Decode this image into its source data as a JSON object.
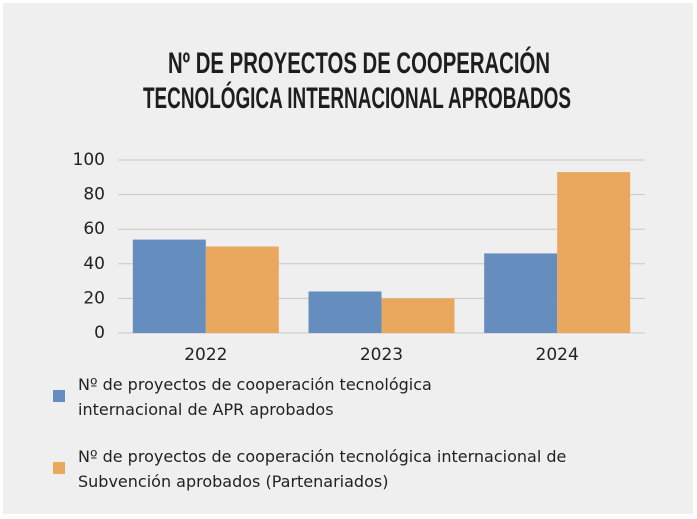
{
  "chart_data": {
    "type": "bar",
    "title": [
      "Nº DE PROYECTOS DE COOPERACIÓN",
      "TECNOLÓGICA INTERNACIONAL APROBADOS"
    ],
    "categories": [
      "2022",
      "2023",
      "2024"
    ],
    "series": [
      {
        "name": "Nº de proyectos de cooperación tecnológica internacional de APR aprobados",
        "color": "#658ebf",
        "values": [
          54,
          24,
          46
        ]
      },
      {
        "name": "Nº de proyectos de cooperación tecnológica internacional de Subvención aprobados (Partenariados)",
        "color": "#e9a85e",
        "values": [
          50,
          20,
          93
        ]
      }
    ],
    "ylim": [
      0,
      100
    ],
    "yticks": [
      0,
      20,
      40,
      60,
      80,
      100
    ],
    "grid": true
  }
}
